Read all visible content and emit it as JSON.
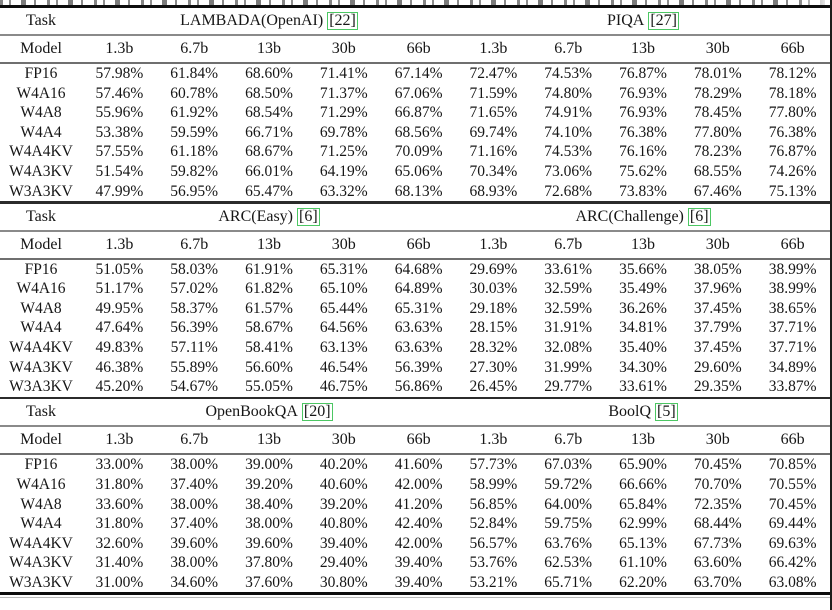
{
  "page": {
    "background": "#ffffff",
    "citation_border_color": "#4cc763",
    "clipped_caption_visible": true
  },
  "table": {
    "task_label": "Task",
    "model_label": "Model",
    "size_headers": [
      "1.3b",
      "6.7b",
      "13b",
      "30b",
      "66b"
    ],
    "sections": [
      {
        "left_task": {
          "name": "LAMBADA(OpenAI)",
          "cite": "[22]"
        },
        "right_task": {
          "name": "PIQA",
          "cite": "[27]"
        },
        "rows": [
          {
            "model": "FP16",
            "left": [
              "57.98%",
              "61.84%",
              "68.60%",
              "71.41%",
              "67.14%"
            ],
            "right": [
              "72.47%",
              "74.53%",
              "76.87%",
              "78.01%",
              "78.12%"
            ]
          },
          {
            "model": "W4A16",
            "left": [
              "57.46%",
              "60.78%",
              "68.50%",
              "71.37%",
              "67.06%"
            ],
            "right": [
              "71.59%",
              "74.80%",
              "76.93%",
              "78.29%",
              "78.18%"
            ]
          },
          {
            "model": "W4A8",
            "left": [
              "55.96%",
              "61.92%",
              "68.54%",
              "71.29%",
              "66.87%"
            ],
            "right": [
              "71.65%",
              "74.91%",
              "76.93%",
              "78.45%",
              "77.80%"
            ]
          },
          {
            "model": "W4A4",
            "left": [
              "53.38%",
              "59.59%",
              "66.71%",
              "69.78%",
              "68.56%"
            ],
            "right": [
              "69.74%",
              "74.10%",
              "76.38%",
              "77.80%",
              "76.38%"
            ]
          },
          {
            "model": "W4A4KV",
            "left": [
              "57.55%",
              "61.18%",
              "68.67%",
              "71.25%",
              "70.09%"
            ],
            "right": [
              "71.16%",
              "74.53%",
              "76.16%",
              "78.23%",
              "76.87%"
            ]
          },
          {
            "model": "W4A3KV",
            "left": [
              "51.54%",
              "59.82%",
              "66.01%",
              "64.19%",
              "65.06%"
            ],
            "right": [
              "70.34%",
              "73.06%",
              "75.62%",
              "68.55%",
              "74.26%"
            ]
          },
          {
            "model": "W3A3KV",
            "left": [
              "47.99%",
              "56.95%",
              "65.47%",
              "63.32%",
              "68.13%"
            ],
            "right": [
              "68.93%",
              "72.68%",
              "73.83%",
              "67.46%",
              "75.13%"
            ]
          }
        ]
      },
      {
        "left_task": {
          "name": "ARC(Easy)",
          "cite": "[6]"
        },
        "right_task": {
          "name": "ARC(Challenge)",
          "cite": "[6]"
        },
        "rows": [
          {
            "model": "FP16",
            "left": [
              "51.05%",
              "58.03%",
              "61.91%",
              "65.31%",
              "64.68%"
            ],
            "right": [
              "29.69%",
              "33.61%",
              "35.66%",
              "38.05%",
              "38.99%"
            ]
          },
          {
            "model": "W4A16",
            "left": [
              "51.17%",
              "57.02%",
              "61.82%",
              "65.10%",
              "64.89%"
            ],
            "right": [
              "30.03%",
              "32.59%",
              "35.49%",
              "37.96%",
              "38.99%"
            ]
          },
          {
            "model": "W4A8",
            "left": [
              "49.95%",
              "58.37%",
              "61.57%",
              "65.44%",
              "65.31%"
            ],
            "right": [
              "29.18%",
              "32.59%",
              "36.26%",
              "37.45%",
              "38.65%"
            ]
          },
          {
            "model": "W4A4",
            "left": [
              "47.64%",
              "56.39%",
              "58.67%",
              "64.56%",
              "63.63%"
            ],
            "right": [
              "28.15%",
              "31.91%",
              "34.81%",
              "37.79%",
              "37.71%"
            ]
          },
          {
            "model": "W4A4KV",
            "left": [
              "49.83%",
              "57.11%",
              "58.41%",
              "63.13%",
              "63.63%"
            ],
            "right": [
              "28.32%",
              "32.08%",
              "35.40%",
              "37.45%",
              "37.71%"
            ]
          },
          {
            "model": "W4A3KV",
            "left": [
              "46.38%",
              "55.89%",
              "56.60%",
              "46.54%",
              "56.39%"
            ],
            "right": [
              "27.30%",
              "31.99%",
              "34.30%",
              "29.60%",
              "34.89%"
            ]
          },
          {
            "model": "W3A3KV",
            "left": [
              "45.20%",
              "54.67%",
              "55.05%",
              "46.75%",
              "56.86%"
            ],
            "right": [
              "26.45%",
              "29.77%",
              "33.61%",
              "29.35%",
              "33.87%"
            ]
          }
        ]
      },
      {
        "left_task": {
          "name": "OpenBookQA",
          "cite": "[20]"
        },
        "right_task": {
          "name": "BoolQ",
          "cite": "[5]"
        },
        "rows": [
          {
            "model": "FP16",
            "left": [
              "33.00%",
              "38.00%",
              "39.00%",
              "40.20%",
              "41.60%"
            ],
            "right": [
              "57.73%",
              "67.03%",
              "65.90%",
              "70.45%",
              "70.85%"
            ]
          },
          {
            "model": "W4A16",
            "left": [
              "31.80%",
              "37.40%",
              "39.20%",
              "40.60%",
              "42.00%"
            ],
            "right": [
              "58.99%",
              "59.72%",
              "66.66%",
              "70.70%",
              "70.55%"
            ]
          },
          {
            "model": "W4A8",
            "left": [
              "33.60%",
              "38.00%",
              "38.40%",
              "39.20%",
              "41.20%"
            ],
            "right": [
              "56.85%",
              "64.00%",
              "65.84%",
              "72.35%",
              "70.45%"
            ]
          },
          {
            "model": "W4A4",
            "left": [
              "31.80%",
              "37.40%",
              "38.00%",
              "40.80%",
              "42.40%"
            ],
            "right": [
              "52.84%",
              "59.75%",
              "62.99%",
              "68.44%",
              "69.44%"
            ]
          },
          {
            "model": "W4A4KV",
            "left": [
              "32.60%",
              "39.60%",
              "39.60%",
              "39.40%",
              "42.00%"
            ],
            "right": [
              "56.57%",
              "63.76%",
              "65.13%",
              "67.73%",
              "69.63%"
            ]
          },
          {
            "model": "W4A3KV",
            "left": [
              "31.40%",
              "38.00%",
              "37.80%",
              "29.40%",
              "39.40%"
            ],
            "right": [
              "53.76%",
              "62.53%",
              "61.10%",
              "63.60%",
              "66.42%"
            ]
          },
          {
            "model": "W3A3KV",
            "left": [
              "31.00%",
              "34.60%",
              "37.60%",
              "30.80%",
              "39.40%"
            ],
            "right": [
              "53.21%",
              "65.71%",
              "62.20%",
              "63.70%",
              "63.08%"
            ]
          }
        ]
      }
    ]
  }
}
